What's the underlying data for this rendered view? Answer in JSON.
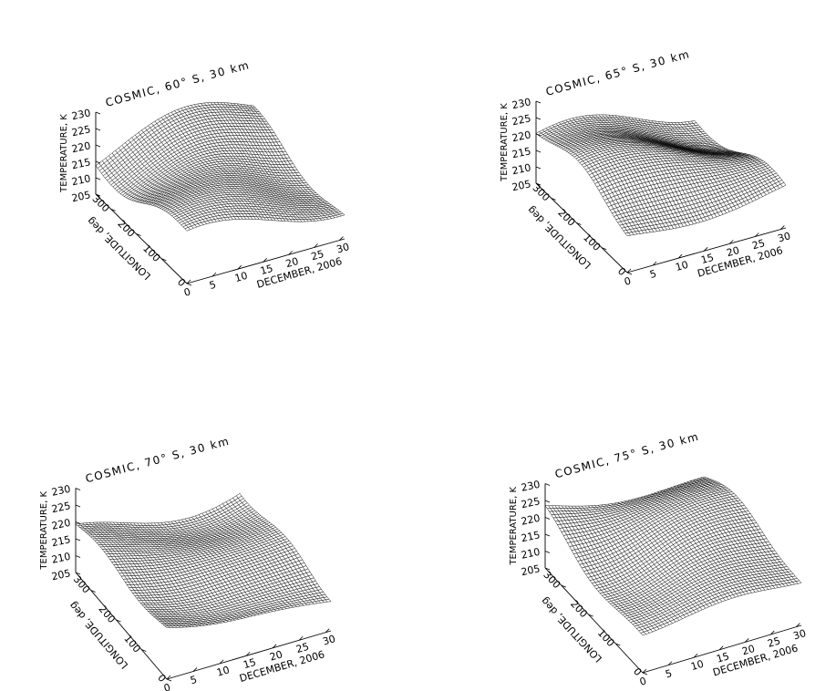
{
  "chart_data": [
    {
      "type": "surface",
      "title": "COSMIC, 60° S, 30 km",
      "xlabel": "DECEMBER, 2006",
      "ylabel": "LONGITUDE, deg",
      "zlabel": "TEMPERATURE, K",
      "xlim": [
        1,
        31
      ],
      "ylim": [
        0,
        360
      ],
      "zlim": [
        205,
        230
      ],
      "xticks": [
        "0",
        "5",
        "10",
        "15",
        "20",
        "25",
        "30"
      ],
      "yticks": [
        "0",
        "100",
        "200",
        "300"
      ],
      "zticks": [
        "205",
        "210",
        "215",
        "220",
        "225",
        "230"
      ],
      "grid": false,
      "mean_temperature_k": 216
    },
    {
      "type": "surface",
      "title": "COSMIC, 65° S, 30 km",
      "xlabel": "DECEMBER, 2006",
      "ylabel": "LONGITUDE, deg",
      "zlabel": "TEMPERATURE, K",
      "xlim": [
        1,
        31
      ],
      "ylim": [
        0,
        360
      ],
      "zlim": [
        205,
        230
      ],
      "xticks": [
        "0",
        "5",
        "10",
        "15",
        "20",
        "25",
        "30"
      ],
      "yticks": [
        "0",
        "100",
        "200",
        "300"
      ],
      "zticks": [
        "205",
        "210",
        "215",
        "220",
        "225",
        "230"
      ],
      "grid": false,
      "mean_temperature_k": 216
    },
    {
      "type": "surface",
      "title": "COSMIC, 70° S, 30 km",
      "xlabel": "DECEMBER, 2006",
      "ylabel": "LONGITUDE, deg",
      "zlabel": "TEMPERATURE, K",
      "xlim": [
        1,
        31
      ],
      "ylim": [
        0,
        360
      ],
      "zlim": [
        205,
        230
      ],
      "xticks": [
        "0",
        "5",
        "10",
        "15",
        "20",
        "25",
        "30"
      ],
      "yticks": [
        "0",
        "100",
        "200",
        "300"
      ],
      "zticks": [
        "205",
        "210",
        "215",
        "220",
        "225",
        "230"
      ],
      "grid": false,
      "mean_temperature_k": 217
    },
    {
      "type": "surface",
      "title": "COSMIC, 75° S, 30 km",
      "xlabel": "DECEMBER, 2006",
      "ylabel": "LONGITUDE, deg",
      "zlabel": "TEMPERATURE, K",
      "xlim": [
        1,
        31
      ],
      "ylim": [
        0,
        360
      ],
      "zlim": [
        205,
        230
      ],
      "xticks": [
        "0",
        "5",
        "10",
        "15",
        "20",
        "25",
        "30"
      ],
      "yticks": [
        "0",
        "100",
        "200",
        "300"
      ],
      "zticks": [
        "205",
        "210",
        "215",
        "220",
        "225",
        "230"
      ],
      "grid": false,
      "mean_temperature_k": 218
    }
  ]
}
